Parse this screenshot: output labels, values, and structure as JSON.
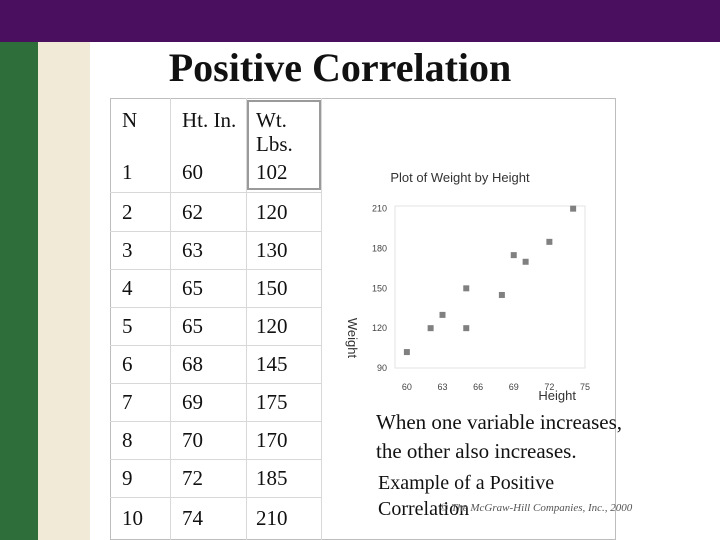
{
  "slide": {
    "title": "Positive Correlation",
    "copyright": "© The McGraw-Hill Companies, Inc., 2000"
  },
  "table": {
    "headers": [
      "N",
      "Ht. In.",
      "Wt. Lbs."
    ],
    "rows": [
      [
        "1",
        "60",
        "102"
      ],
      [
        "2",
        "62",
        "120"
      ],
      [
        "3",
        "63",
        "130"
      ],
      [
        "4",
        "65",
        "150"
      ],
      [
        "5",
        "65",
        "120"
      ],
      [
        "6",
        "68",
        "145"
      ],
      [
        "7",
        "69",
        "175"
      ],
      [
        "8",
        "70",
        "170"
      ],
      [
        "9",
        "72",
        "185"
      ],
      [
        "10",
        "74",
        "210"
      ]
    ]
  },
  "notes": {
    "line1": "When one variable increases,",
    "line2": "the other also increases.",
    "example1": "Example of a Positive",
    "example2": "Correlation"
  },
  "chart_data": {
    "type": "scatter",
    "title": "Plot of Weight by Height",
    "xlabel": "Height",
    "ylabel": "Weight",
    "xlim": [
      59,
      75
    ],
    "ylim": [
      90,
      212
    ],
    "x_ticks": [
      "60",
      "63",
      "66",
      "69",
      "72",
      "75"
    ],
    "y_ticks": [
      "90",
      "120",
      "150",
      "180",
      "210"
    ],
    "points": [
      {
        "x": 60,
        "y": 102
      },
      {
        "x": 62,
        "y": 120
      },
      {
        "x": 63,
        "y": 130
      },
      {
        "x": 65,
        "y": 150
      },
      {
        "x": 65,
        "y": 120
      },
      {
        "x": 68,
        "y": 145
      },
      {
        "x": 69,
        "y": 175
      },
      {
        "x": 70,
        "y": 170
      },
      {
        "x": 72,
        "y": 185
      },
      {
        "x": 74,
        "y": 210
      }
    ],
    "marker_color": "#808080"
  },
  "colors": {
    "topbar": "#4a0f5e",
    "sidebar_green": "#2e6e3a",
    "sidebar_beige": "#f1ead6"
  }
}
